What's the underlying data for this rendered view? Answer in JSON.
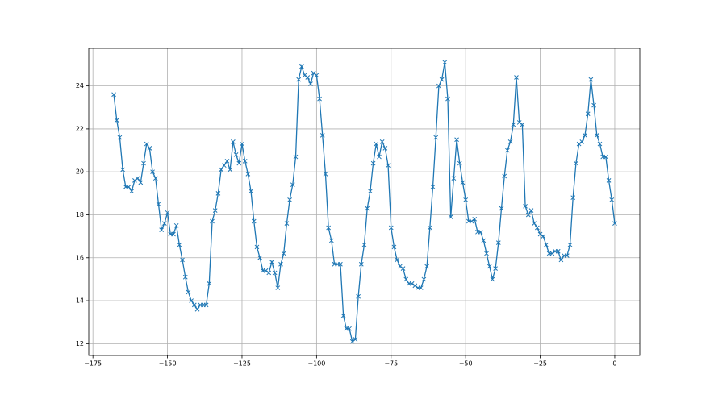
{
  "chart_data": {
    "type": "line",
    "marker": "x",
    "grid": true,
    "x": [
      -168,
      -167,
      -166,
      -165,
      -164,
      -163,
      -162,
      -161,
      -160,
      -159,
      -158,
      -157,
      -156,
      -155,
      -154,
      -153,
      -152,
      -151,
      -150,
      -149,
      -148,
      -147,
      -146,
      -145,
      -144,
      -143,
      -142,
      -141,
      -140,
      -139,
      -138,
      -137,
      -136,
      -135,
      -134,
      -133,
      -132,
      -131,
      -130,
      -129,
      -128,
      -127,
      -126,
      -125,
      -124,
      -123,
      -122,
      -121,
      -120,
      -119,
      -118,
      -117,
      -116,
      -115,
      -114,
      -113,
      -112,
      -111,
      -110,
      -109,
      -108,
      -107,
      -106,
      -105,
      -104,
      -103,
      -102,
      -101,
      -100,
      -99,
      -98,
      -97,
      -96,
      -95,
      -94,
      -93,
      -92,
      -91,
      -90,
      -89,
      -88,
      -87,
      -86,
      -85,
      -84,
      -83,
      -82,
      -81,
      -80,
      -79,
      -78,
      -77,
      -76,
      -75,
      -74,
      -73,
      -72,
      -71,
      -70,
      -69,
      -68,
      -67,
      -66,
      -65,
      -64,
      -63,
      -62,
      -61,
      -60,
      -59,
      -58,
      -57,
      -56,
      -55,
      -54,
      -53,
      -52,
      -51,
      -50,
      -49,
      -48,
      -47,
      -46,
      -45,
      -44,
      -43,
      -42,
      -41,
      -40,
      -39,
      -38,
      -37,
      -36,
      -35,
      -34,
      -33,
      -32,
      -31,
      -30,
      -29,
      -28,
      -27,
      -26,
      -25,
      -24,
      -23,
      -22,
      -21,
      -20,
      -19,
      -18,
      -17,
      -16,
      -15,
      -14,
      -13,
      -12,
      -11,
      -10,
      -9,
      -8,
      -7,
      -6,
      -5,
      -4,
      -3,
      -2,
      -1,
      0
    ],
    "series": [
      {
        "color": "#1f77b4",
        "values": [
          23.6,
          22.4,
          21.6,
          20.1,
          19.3,
          19.3,
          19.1,
          19.6,
          19.7,
          19.5,
          20.4,
          21.3,
          21.1,
          20.0,
          19.7,
          18.5,
          17.3,
          17.6,
          18.1,
          17.1,
          17.1,
          17.5,
          16.6,
          15.9,
          15.1,
          14.4,
          14.0,
          13.8,
          13.6,
          13.8,
          13.8,
          13.8,
          14.8,
          17.7,
          18.2,
          19.0,
          20.1,
          20.3,
          20.5,
          20.1,
          21.4,
          20.8,
          20.4,
          21.3,
          20.5,
          19.9,
          19.1,
          17.7,
          16.5,
          16.0,
          15.4,
          15.4,
          15.3,
          15.8,
          15.3,
          14.6,
          15.7,
          16.2,
          17.6,
          18.7,
          19.4,
          20.7,
          24.3,
          24.9,
          24.5,
          24.4,
          24.1,
          24.6,
          24.5,
          23.4,
          21.7,
          19.9,
          17.4,
          16.8,
          15.7,
          15.7,
          15.7,
          13.3,
          12.7,
          12.7,
          12.1,
          12.2,
          14.2,
          15.7,
          16.6,
          18.3,
          19.1,
          20.4,
          21.3,
          20.7,
          21.4,
          21.1,
          20.3,
          17.4,
          16.5,
          15.9,
          15.6,
          15.5,
          15.0,
          14.8,
          14.8,
          14.7,
          14.6,
          14.6,
          15.0,
          15.6,
          17.4,
          19.3,
          21.6,
          24.0,
          24.3,
          25.1,
          23.4,
          17.9,
          19.7,
          21.5,
          20.4,
          19.5,
          18.7,
          17.7,
          17.7,
          17.8,
          17.2,
          17.2,
          16.8,
          16.2,
          15.6,
          15.0,
          15.5,
          16.7,
          18.3,
          19.8,
          21.0,
          21.4,
          22.2,
          24.4,
          22.3,
          22.2,
          18.4,
          18.0,
          18.2,
          17.6,
          17.4,
          17.1,
          17.0,
          16.6,
          16.2,
          16.2,
          16.3,
          16.3,
          15.9,
          16.1,
          16.1,
          16.6,
          18.8,
          20.4,
          21.3,
          21.4,
          21.7,
          22.7,
          24.3,
          23.1,
          21.7,
          21.3,
          20.7,
          20.7,
          19.6,
          18.7,
          17.6
        ]
      }
    ],
    "xlim": [
      -176.4,
      8.4
    ],
    "ylim": [
      11.45,
      25.75
    ],
    "xticks": [
      {
        "value": -175,
        "label": "−175"
      },
      {
        "value": -150,
        "label": "−150"
      },
      {
        "value": -125,
        "label": "−125"
      },
      {
        "value": -100,
        "label": "−100"
      },
      {
        "value": -75,
        "label": "−75"
      },
      {
        "value": -50,
        "label": "−50"
      },
      {
        "value": -25,
        "label": "−25"
      },
      0
    ],
    "yticks": [
      12,
      14,
      16,
      18,
      20,
      22,
      24
    ]
  }
}
